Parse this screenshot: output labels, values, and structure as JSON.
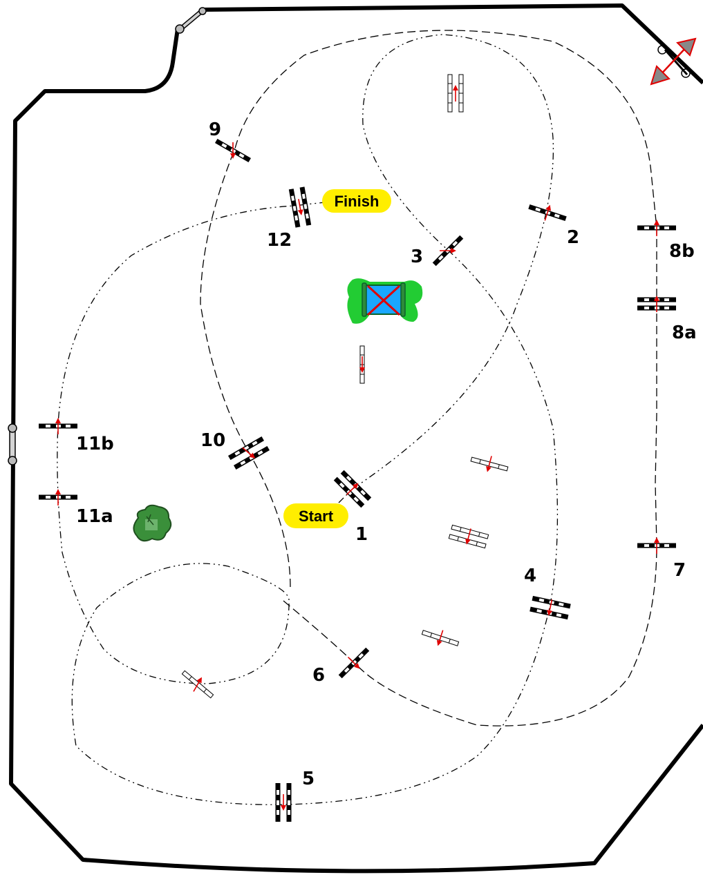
{
  "labels": {
    "start": "Start",
    "finish": "Finish",
    "n1": "1",
    "n2": "2",
    "n3": "3",
    "n4": "4",
    "n5": "5",
    "n6": "6",
    "n7": "7",
    "n8a": "8a",
    "n8b": "8b",
    "n9": "9",
    "n10": "10",
    "n11a": "11a",
    "n11b": "11b",
    "n12": "12"
  },
  "colors": {
    "ring_border": "#000000",
    "jump_bar": "#000000",
    "direction_arrow": "#e00000",
    "pill": "#ffee00",
    "water_blue": "#1aa7ff",
    "water_green": "#22cc33",
    "bush_green": "#3a8f3a",
    "gate_grey": "#c8c8c8",
    "gate_arrow": "#dd2222"
  },
  "icons": {
    "water_jump": "water-jump-icon",
    "bush": "bush-icon",
    "gate": "gate-icon",
    "entrance": "entrance-double-arrow-icon"
  }
}
